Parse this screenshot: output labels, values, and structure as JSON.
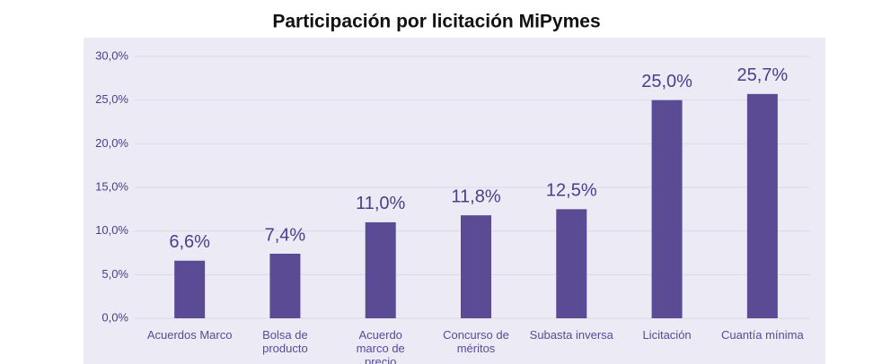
{
  "chart_data": {
    "type": "bar",
    "title": "Participación por licitación MiPymes",
    "categories": [
      "Acuerdos Marco",
      "Bolsa de producto",
      "Acuerdo marco de precio",
      "Concurso de méritos",
      "Subasta inversa",
      "Licitación",
      "Cuantía mínima"
    ],
    "values": [
      6.6,
      7.4,
      11.0,
      11.8,
      12.5,
      25.0,
      25.7
    ],
    "value_labels": [
      "6,6%",
      "7,4%",
      "11,0%",
      "11,8%",
      "12,5%",
      "25,0%",
      "25,7%"
    ],
    "color": "#5b4b94",
    "ylim": [
      0,
      30
    ],
    "yticks": [
      {
        "value": 0,
        "label": "0,0%"
      },
      {
        "value": 5,
        "label": "5,0%"
      },
      {
        "value": 10,
        "label": "10,0%"
      },
      {
        "value": 15,
        "label": "15,0%"
      },
      {
        "value": 20,
        "label": "20,0%"
      },
      {
        "value": 25,
        "label": "25,0%"
      },
      {
        "value": 30,
        "label": "30,0%"
      }
    ],
    "grid": true
  }
}
